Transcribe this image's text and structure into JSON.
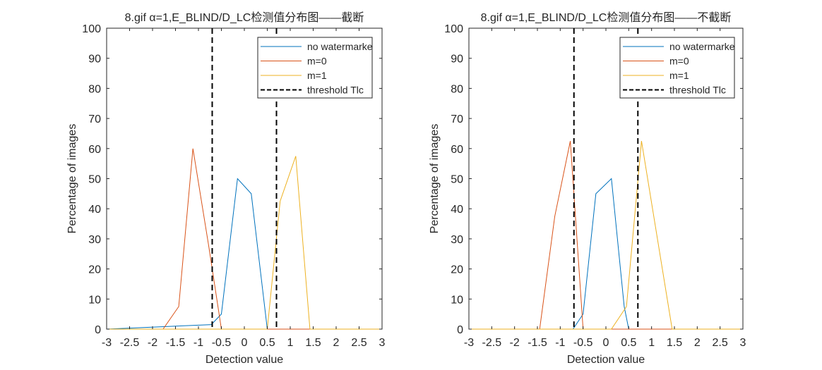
{
  "chart_data": [
    {
      "type": "line",
      "title": "8.gif α=1,E_BLIND/D_LC检测值分布图——截断",
      "xlabel": "Detection value",
      "ylabel": "Percentage of images",
      "xlim": [
        -3,
        3
      ],
      "ylim": [
        0,
        100
      ],
      "xticks": [
        "-3",
        "-2.5",
        "-2",
        "-1.5",
        "-1",
        "-0.5",
        "0",
        "0.5",
        "1",
        "1.5",
        "2",
        "2.5",
        "3"
      ],
      "yticks": [
        "0",
        "10",
        "20",
        "30",
        "40",
        "50",
        "60",
        "70",
        "80",
        "90",
        "100"
      ],
      "grid": false,
      "legend_position": "top-right",
      "series": [
        {
          "name": "no watermarke",
          "color": "#0072BD",
          "x": [
            -3,
            -0.72,
            -0.5,
            -0.15,
            0.15,
            0.5,
            3
          ],
          "y": [
            0,
            1.5,
            5,
            50,
            45,
            0,
            0
          ]
        },
        {
          "name": "m=0",
          "color": "#D95319",
          "x": [
            -3,
            -1.77,
            -1.43,
            -1.12,
            -0.78,
            -0.5,
            3
          ],
          "y": [
            0,
            0,
            7.5,
            60,
            28,
            0,
            0
          ]
        },
        {
          "name": "m=1",
          "color": "#EDB120",
          "x": [
            -3,
            0.5,
            0.78,
            1.12,
            1.43,
            3
          ],
          "y": [
            0,
            0,
            42.5,
            57.5,
            0,
            0
          ]
        }
      ],
      "thresholds": {
        "name": "threshold Tlc",
        "color": "#000000",
        "x": [
          -0.7,
          0.7
        ]
      }
    },
    {
      "type": "line",
      "title": "8.gif α=1,E_BLIND/D_LC检测值分布图——不截断",
      "xlabel": "Detection value",
      "ylabel": "Percentage of images",
      "xlim": [
        -3,
        3
      ],
      "ylim": [
        0,
        100
      ],
      "xticks": [
        "-3",
        "-2.5",
        "-2",
        "-1.5",
        "-1",
        "-0.5",
        "0",
        "0.5",
        "1",
        "1.5",
        "2",
        "2.5",
        "3"
      ],
      "yticks": [
        "0",
        "10",
        "20",
        "30",
        "40",
        "50",
        "60",
        "70",
        "80",
        "90",
        "100"
      ],
      "grid": false,
      "legend_position": "top-right",
      "series": [
        {
          "name": "no watermarke",
          "color": "#0072BD",
          "x": [
            -3,
            -0.72,
            -0.5,
            -0.22,
            0.12,
            0.4,
            0.5,
            3
          ],
          "y": [
            0,
            0,
            5,
            45,
            50,
            7.5,
            0,
            0
          ]
        },
        {
          "name": "m=0",
          "color": "#D95319",
          "x": [
            -3,
            -1.45,
            -1.12,
            -0.78,
            -0.5,
            3
          ],
          "y": [
            0,
            0,
            37.5,
            62.5,
            0,
            0
          ]
        },
        {
          "name": "m=1",
          "color": "#EDB120",
          "x": [
            -3,
            0.12,
            0.45,
            0.78,
            1.45,
            3
          ],
          "y": [
            0,
            0,
            7.5,
            62.5,
            0,
            0
          ]
        }
      ],
      "thresholds": {
        "name": "threshold Tlc",
        "color": "#000000",
        "x": [
          -0.7,
          0.7
        ]
      }
    }
  ]
}
